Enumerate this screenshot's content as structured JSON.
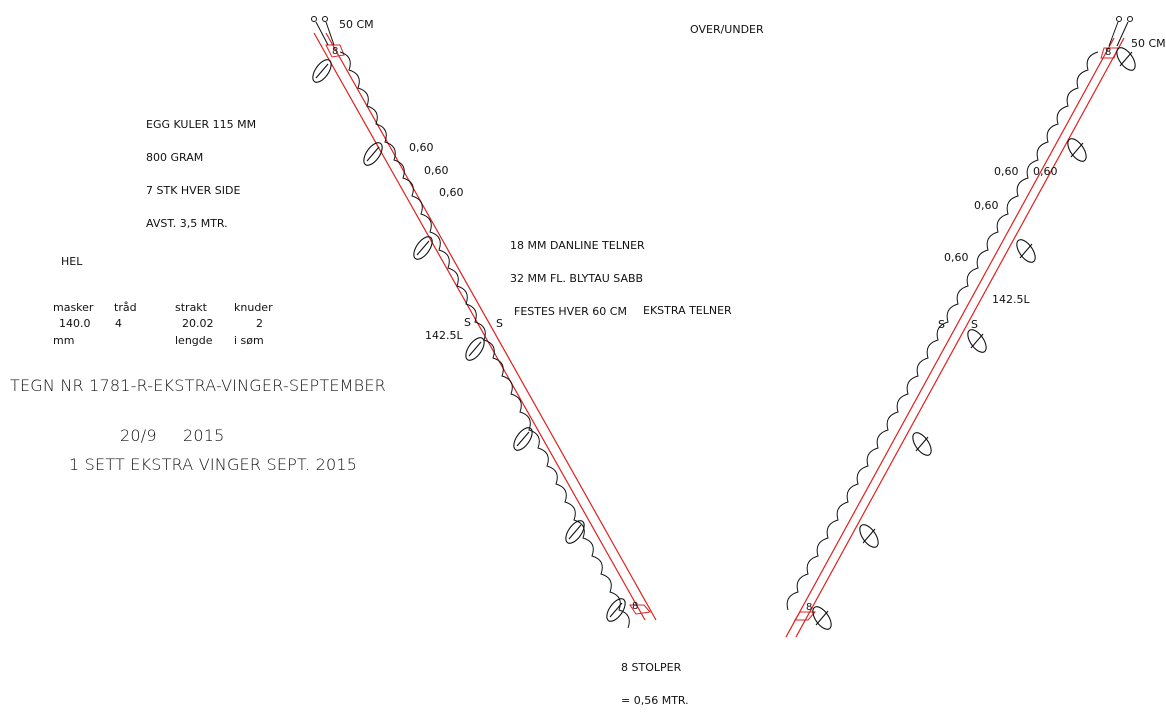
{
  "header": {
    "mode": "OVER/UNDER"
  },
  "left_wing": {
    "top_length": "50 CM",
    "top_label": "8",
    "bottom_label": "8",
    "spacings": [
      "0,60",
      "0,60",
      "0,60"
    ],
    "length_label": "142.5L",
    "s_marks": [
      "S",
      "S"
    ]
  },
  "right_wing": {
    "top_length": "50 CM",
    "top_label": "8",
    "bottom_label": "8",
    "spacings": [
      "0,60",
      "0,60",
      "0,60",
      "0,60"
    ],
    "length_label": "142.5L",
    "s_marks": [
      "S",
      "S"
    ]
  },
  "floats_note": {
    "line1": "EGG KULER 115 MM",
    "line2": "800 GRAM",
    "line3": "7 STK HVER SIDE",
    "line4": "AVST. 3,5 MTR."
  },
  "rope_note": {
    "line1": "18 MM DANLINE TELNER",
    "line2": "32 MM FL. BLYTAU SABB",
    "line3": "FESTES HVER 60 CM"
  },
  "extra_label": "EKSTRA TELNER",
  "net_table": {
    "title": "HEL",
    "headers": [
      {
        "line1": "masker",
        "line2": "mm"
      },
      {
        "line1": "tråd",
        "line2": ""
      },
      {
        "line1": "strakt",
        "line2": "lengde"
      },
      {
        "line1": "knuder",
        "line2": "i søm"
      }
    ],
    "row": [
      "140.0",
      "4",
      "20.02",
      "2"
    ]
  },
  "drawing_info": {
    "number": "TEGN NR 1781-R-EKSTRA-VINGER-SEPTEMBER",
    "date_day": "20/9",
    "date_year": "2015",
    "description": "1 SETT EKSTRA VINGER SEPT. 2015"
  },
  "stolper_note": {
    "line1": "8 STOLPER",
    "line2": "= 0,56 MTR."
  },
  "colors": {
    "line": "#e02020",
    "ink": "#111111"
  },
  "icons": [
    "float-icon",
    "loop-icon"
  ]
}
